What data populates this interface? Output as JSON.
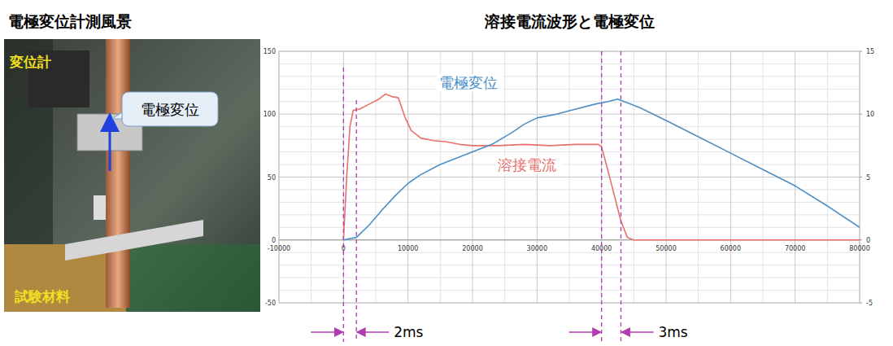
{
  "photo_panel": {
    "title": "電極変位計測風景",
    "labels": [
      "変位計",
      "試験材料"
    ],
    "callout": "電極変位"
  },
  "chart_data": {
    "type": "line",
    "title": "溶接電流波形と電極変位",
    "xlim": [
      -10000,
      80000
    ],
    "xticks": [
      -10000,
      0,
      10000,
      20000,
      30000,
      40000,
      50000,
      60000,
      70000,
      80000
    ],
    "ylim": [
      -50,
      150
    ],
    "yticks": [
      -50,
      0,
      50,
      100,
      150
    ],
    "y2lim": [
      -5,
      15
    ],
    "y2ticks": [
      -5,
      0,
      5,
      10,
      15
    ],
    "grid": true,
    "series": [
      {
        "name": "溶接電流",
        "color": "#e8706c",
        "x": [
          0,
          500,
          1000,
          1500,
          2500,
          4000,
          5500,
          6500,
          7500,
          8500,
          9500,
          10500,
          12000,
          14000,
          16000,
          18000,
          20000,
          24000,
          28000,
          32000,
          36000,
          39500,
          40000,
          41000,
          42000,
          43000,
          44000,
          45000,
          80000
        ],
        "values": [
          0,
          50,
          90,
          103,
          104,
          108,
          112,
          116,
          114,
          113,
          98,
          87,
          81,
          79,
          78,
          76,
          75,
          75,
          76,
          75,
          76,
          76,
          74,
          55,
          35,
          15,
          2,
          0,
          0
        ]
      },
      {
        "name": "電極変位",
        "color": "#4a8fc7",
        "axis": "y2",
        "x": [
          0,
          2000,
          4000,
          6000,
          8000,
          10000,
          12000,
          15000,
          18000,
          20000,
          23000,
          26000,
          28000,
          30000,
          33000,
          36000,
          39000,
          41000,
          42500,
          44000,
          46000,
          48000,
          50000,
          55000,
          60000,
          65000,
          70000,
          75000,
          80000
        ],
        "values": [
          0,
          0.2,
          1.2,
          2.4,
          3.5,
          4.5,
          5.2,
          6.0,
          6.6,
          7.0,
          7.6,
          8.5,
          9.2,
          9.7,
          10.0,
          10.4,
          10.8,
          11.0,
          11.2,
          10.9,
          10.5,
          10.0,
          9.5,
          8.2,
          6.9,
          5.6,
          4.3,
          2.7,
          1.0
        ]
      }
    ],
    "annotations": [
      {
        "text": "2ms",
        "x": [
          0,
          2000
        ]
      },
      {
        "text": "3ms",
        "x": [
          40000,
          43000
        ]
      }
    ]
  }
}
